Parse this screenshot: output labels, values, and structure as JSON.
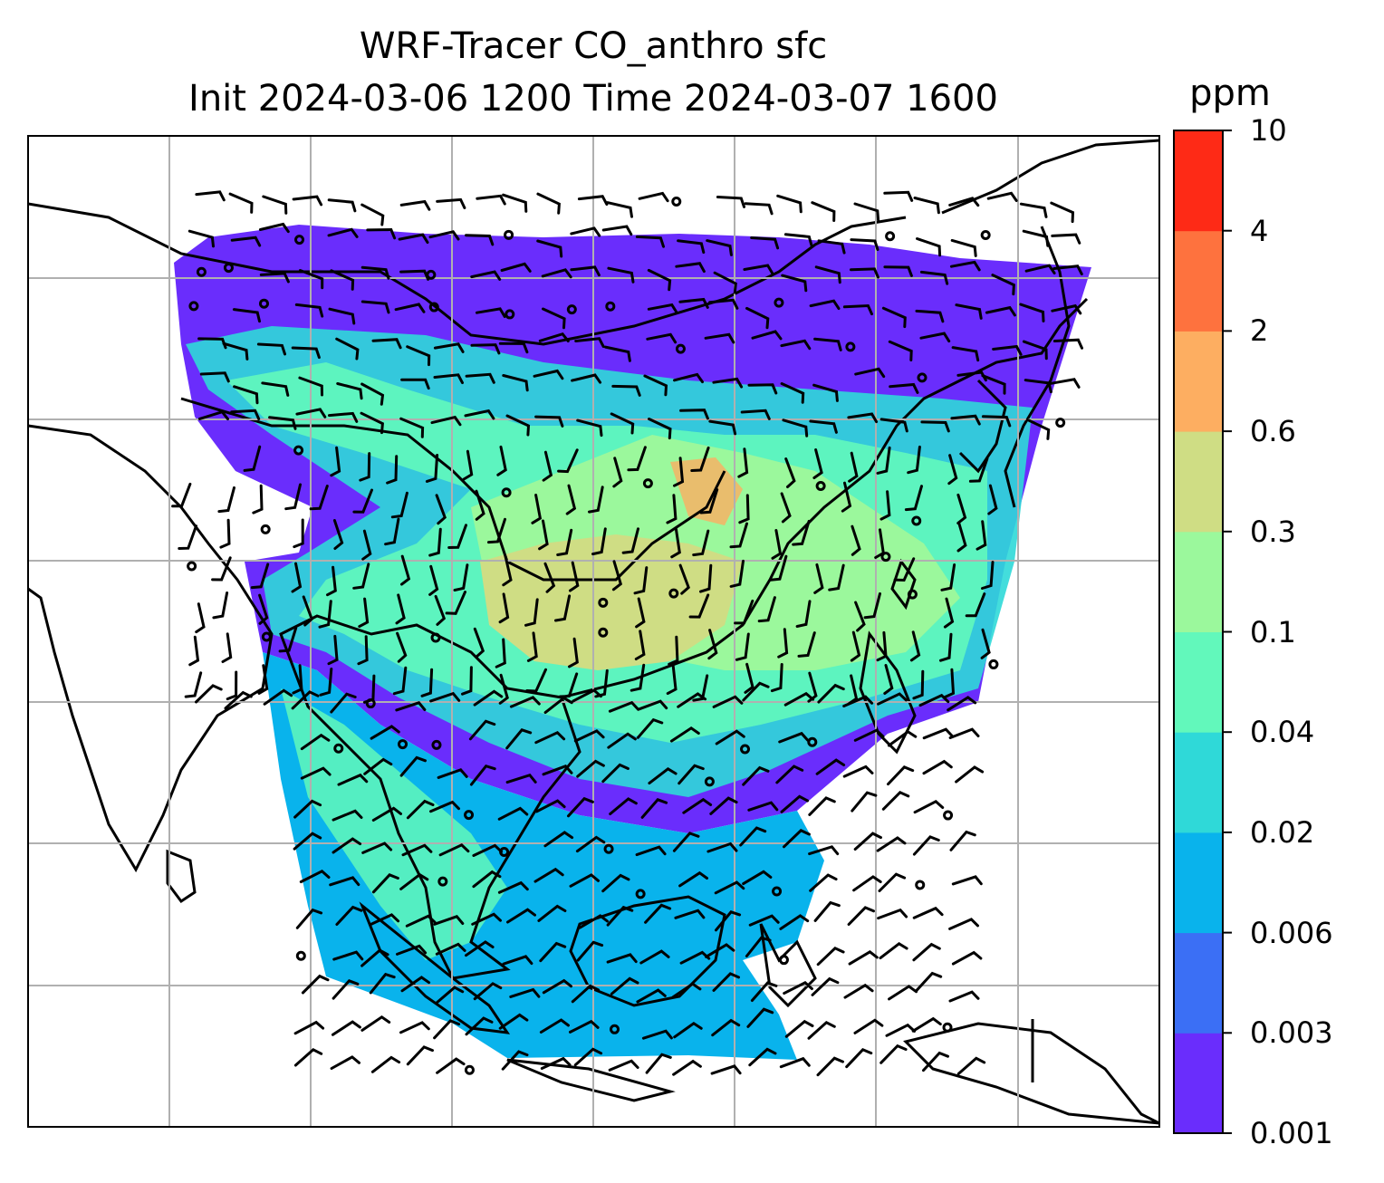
{
  "map": {
    "title_line1": "WRF-Tracer CO_anthro sfc",
    "title_line2": "Init 2024-03-06 1200 Time 2024-03-07 1600",
    "colorbar": {
      "unit": "ppm",
      "tick_labels": [
        "10",
        "4",
        "2",
        "0.6",
        "0.3",
        "0.1",
        "0.04",
        "0.02",
        "0.006",
        "0.003",
        "0.001"
      ],
      "bin_colors": [
        "#6a2dfc",
        "#3b6ff5",
        "#09b3ec",
        "#2fd9d8",
        "#62f8bb",
        "#9bf89c",
        "#cfdd84",
        "#fdae61",
        "#fe723e",
        "#fe2a16"
      ]
    },
    "gridline_color": "#b0b0b0",
    "coastline_color": "#000000"
  }
}
